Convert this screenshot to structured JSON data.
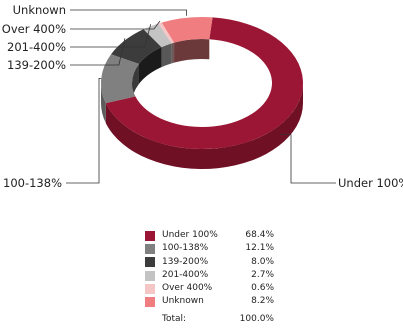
{
  "chart_data": {
    "type": "pie",
    "variant": "3d-donut",
    "categories": [
      "Under 100%",
      "100-138%",
      "139-200%",
      "201-400%",
      "Over 400%",
      "Unknown"
    ],
    "values": [
      68.4,
      12.1,
      8.0,
      2.7,
      0.6,
      8.2
    ],
    "value_labels": [
      "68.4%",
      "12.1%",
      "8.0%",
      "2.7%",
      "0.6%",
      "8.2%"
    ],
    "colors": [
      "#9b1634",
      "#808080",
      "#3c3c3c",
      "#c3c3c3",
      "#f5c6c6",
      "#f07e80"
    ],
    "title": "",
    "legend_position": "bottom-center",
    "total_label": "Total:",
    "total_value": "100.0%"
  }
}
